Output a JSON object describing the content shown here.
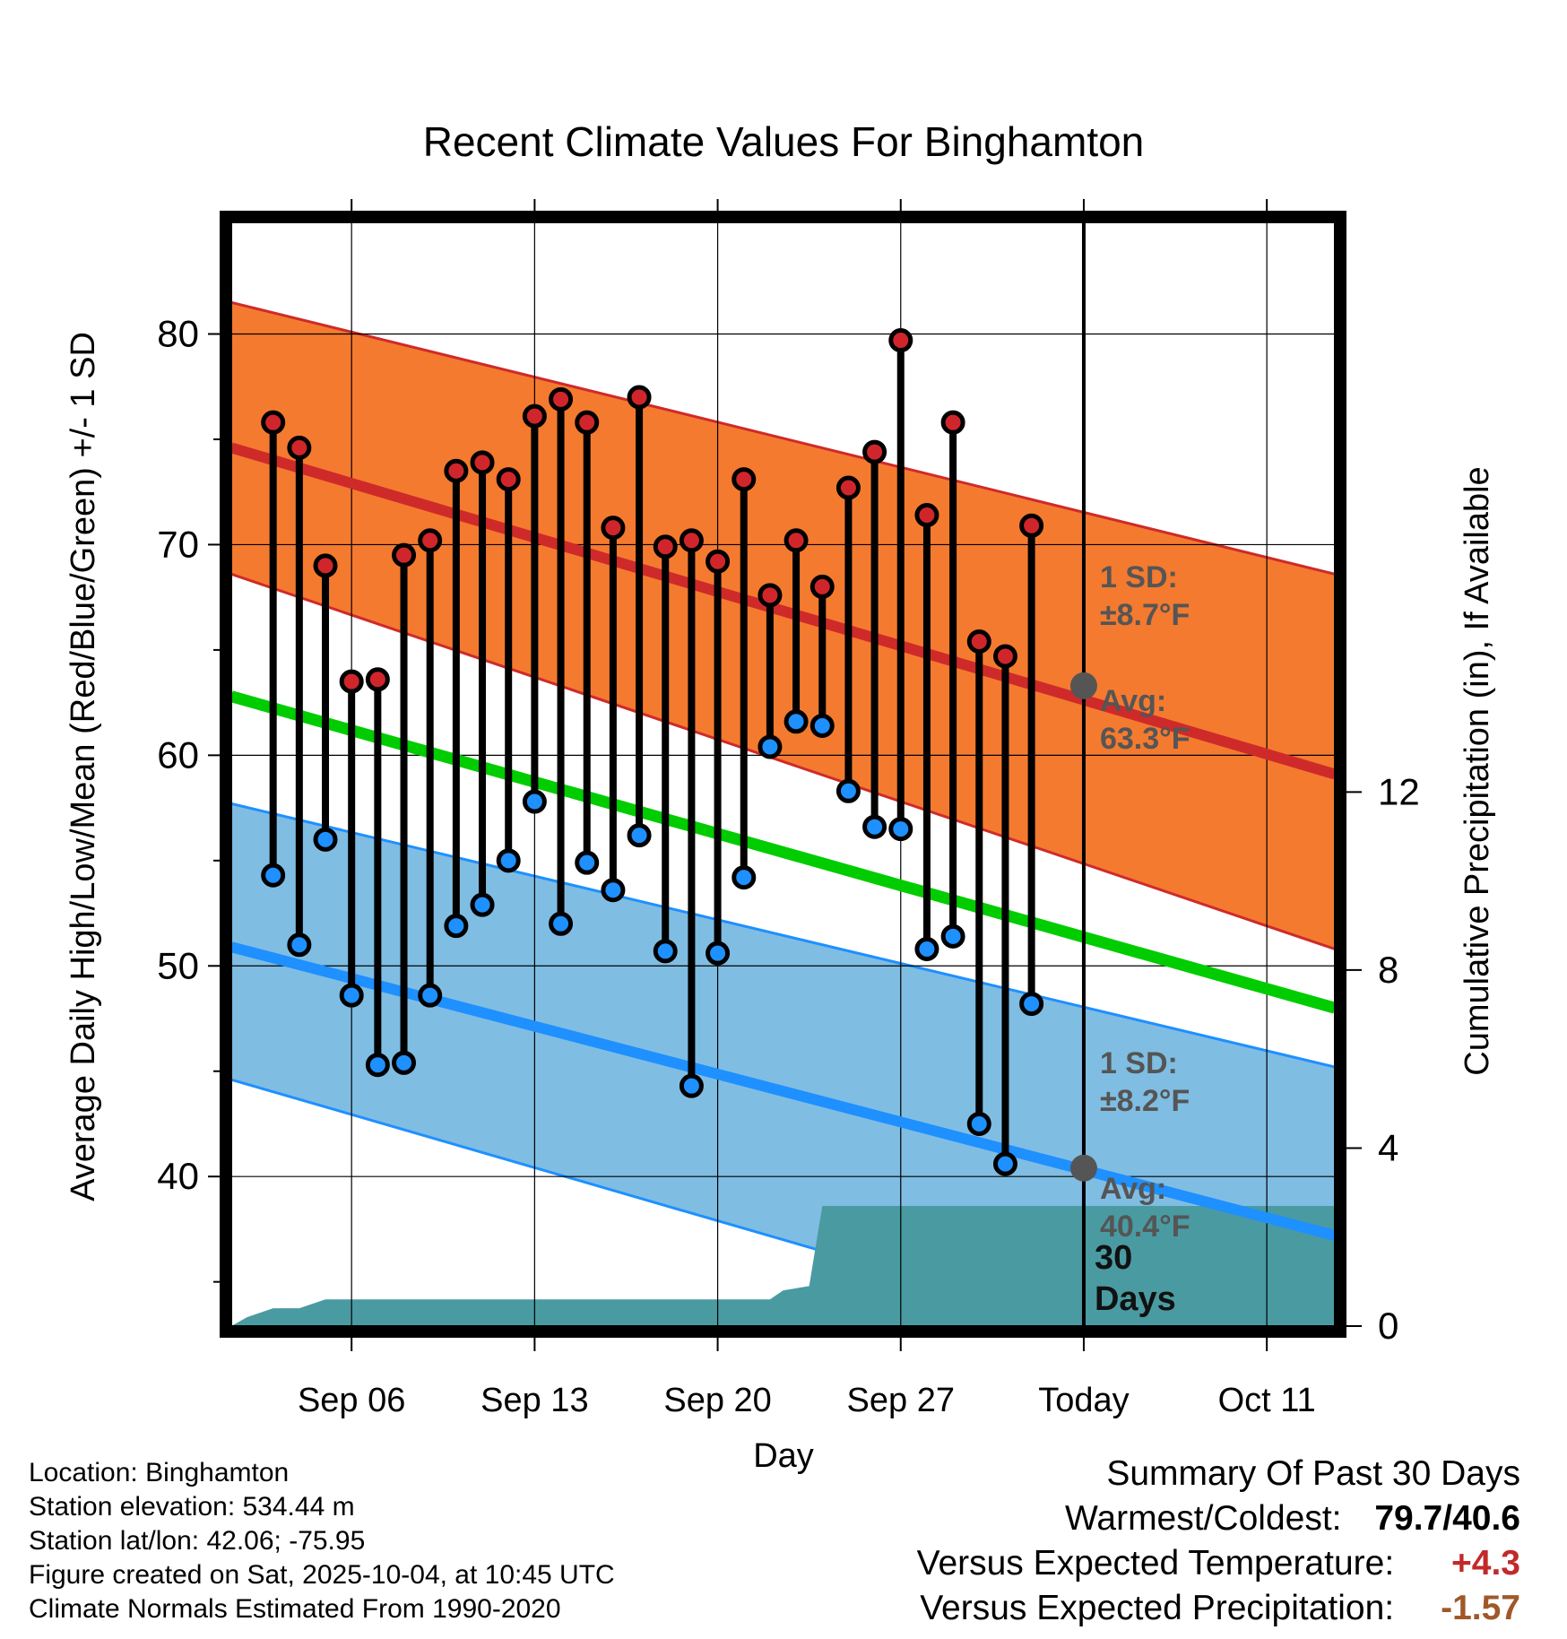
{
  "chart_data": {
    "type": "climate-range",
    "title": "Recent Climate Values For Binghamton",
    "xlabel": "Day",
    "ylabel_left": "Average Daily High/Low/Mean (Red/Blue/Green) +/- 1 SD",
    "ylabel_right": "Cumulative Precipitation (in), If Available",
    "x_range": [
      -3.6,
      38.6
    ],
    "y_range_left": [
      32.9,
      85.3
    ],
    "y_range_right": [
      0,
      24.8
    ],
    "x_ticks": [
      {
        "day": 1,
        "label": "Sep 06"
      },
      {
        "day": 8,
        "label": "Sep 13"
      },
      {
        "day": 15,
        "label": "Sep 20"
      },
      {
        "day": 22,
        "label": "Sep 27"
      },
      {
        "day": 29,
        "label": "Today"
      },
      {
        "day": 36,
        "label": "Oct 11"
      }
    ],
    "y_ticks_left": [
      40,
      50,
      60,
      70,
      80
    ],
    "y_minor_ticks_left": [
      35,
      45,
      55,
      65,
      75
    ],
    "y_ticks_right": [
      0,
      4,
      8,
      12
    ],
    "today_day": 29,
    "normals": {
      "day_points": [
        -3.6,
        38.6
      ],
      "high_avg": [
        74.6,
        59.1
      ],
      "high_upper": [
        81.5,
        68.6
      ],
      "high_lower": [
        68.6,
        50.8
      ],
      "mean_avg": [
        62.8,
        48.0
      ],
      "low_avg": [
        50.9,
        37.2
      ],
      "low_upper": [
        57.7,
        45.2
      ],
      "low_lower": [
        44.6,
        29.4
      ]
    },
    "observed": {
      "days": [
        -2,
        -1,
        0,
        1,
        2,
        3,
        4,
        5,
        6,
        7,
        8,
        9,
        10,
        11,
        12,
        13,
        14,
        15,
        16,
        17,
        18,
        19,
        20,
        21,
        22,
        23,
        24,
        25,
        26,
        27,
        28
      ],
      "highs": [
        75.8,
        74.6,
        69.0,
        63.5,
        63.6,
        69.5,
        70.2,
        73.5,
        73.9,
        73.1,
        76.1,
        76.9,
        75.8,
        70.8,
        77.0,
        69.9,
        70.2,
        69.2,
        73.1,
        67.6,
        70.2,
        68.0,
        72.7,
        74.4,
        79.7,
        71.4,
        75.8,
        65.4,
        64.7,
        70.9,
        null
      ],
      "lows": [
        54.3,
        51.0,
        56.0,
        48.6,
        45.3,
        45.4,
        48.6,
        51.9,
        52.9,
        55.0,
        57.8,
        52.0,
        54.9,
        53.6,
        56.2,
        50.7,
        44.3,
        50.6,
        54.2,
        60.4,
        61.6,
        61.4,
        58.3,
        56.6,
        56.5,
        50.8,
        51.4,
        42.5,
        40.6,
        48.2,
        null
      ]
    },
    "precip_cumulative": {
      "days": [
        -3.6,
        -3,
        -2,
        -1,
        0,
        1,
        2,
        17,
        17.5,
        18.5,
        19,
        38.6
      ],
      "values": [
        0,
        0.2,
        0.4,
        0.4,
        0.6,
        0.6,
        0.6,
        0.6,
        0.8,
        0.9,
        2.7,
        2.7
      ]
    },
    "annotations": {
      "high_sd_label": "1 SD:",
      "high_sd_value": "±8.7°F",
      "high_avg_label": "Avg:",
      "high_avg_value": "63.3°F",
      "low_sd_label": "1 SD:",
      "low_sd_value": "±8.2°F",
      "low_avg_label": "Avg:",
      "low_avg_value": "40.4°F",
      "window_label_top": "30",
      "window_label_bottom": "Days",
      "high_avg_today": 63.3,
      "low_avg_today": 40.4
    },
    "colors": {
      "high_band": "#f47a2f",
      "high_line": "#cf2a2a",
      "high_dot": "#d0262b",
      "mean_line": "#00cc00",
      "low_band": "#80bde3",
      "low_line": "#1e90ff",
      "low_dot": "#1e90ff",
      "precip": "#4a9aa2",
      "annotation": "#555555"
    }
  },
  "info": {
    "location": "Location: Binghamton",
    "elevation": "Station elevation: 534.44 m",
    "latlon": "Station lat/lon: 42.06; -75.95",
    "created": "Figure created on Sat, 2025-10-04, at 10:45 UTC",
    "normals": "Climate Normals Estimated From 1990-2020"
  },
  "summary": {
    "title": "Summary Of Past 30 Days",
    "warmest_label": "Warmest/Coldest:",
    "warmest_value": "79.7/40.6",
    "temp_label": "Versus Expected Temperature:",
    "temp_value": "+4.3",
    "temp_color": "#c22a2a",
    "precip_label": "Versus Expected Precipitation:",
    "precip_value": "-1.57",
    "precip_color": "#a0582a"
  }
}
